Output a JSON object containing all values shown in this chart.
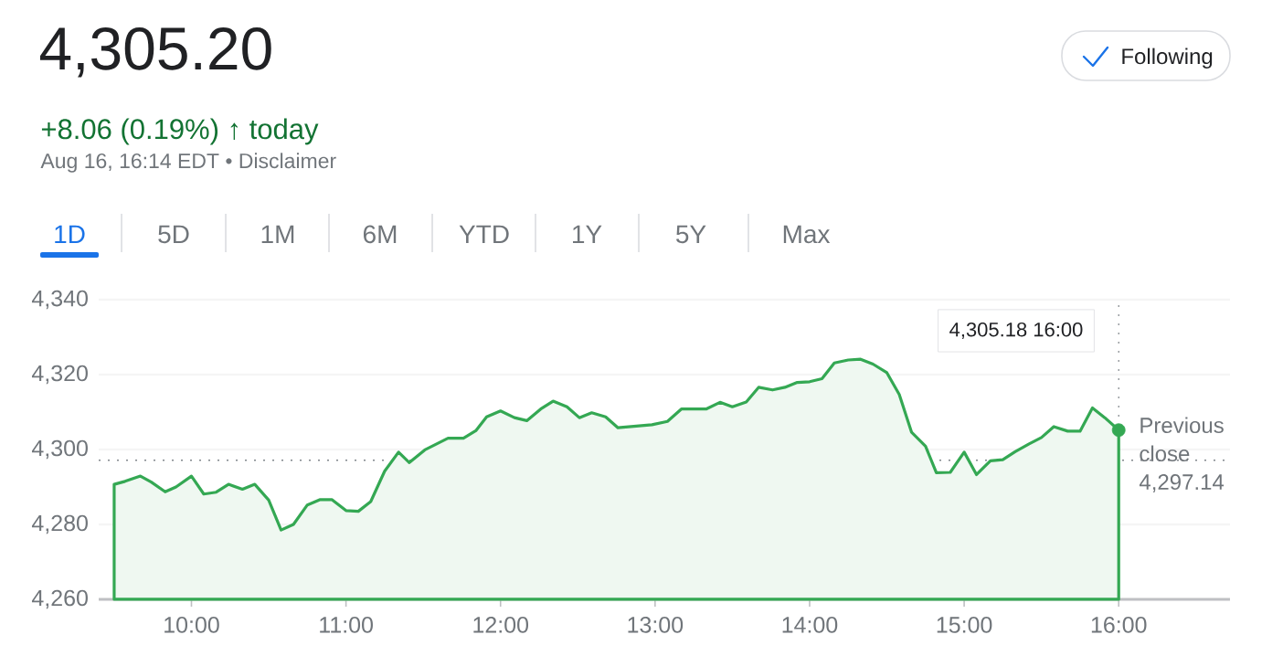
{
  "chart_data": {
    "type": "area",
    "title": "4,305.20",
    "subtitle": "+8.06 (0.19%) ↑ today",
    "annotations": [
      "Aug 16, 16:14 EDT • Disclaimer",
      "Following",
      "1D",
      "5D",
      "1M",
      "6M",
      "YTD",
      "1Y",
      "5Y",
      "Max",
      "4,305.18 16:00"
    ],
    "series": [
      {
        "color": "#34a853",
        "marker": "none",
        "x": [
          9.5,
          9.57,
          9.67,
          9.74,
          9.83,
          9.9,
          10.0,
          10.08,
          10.16,
          10.24,
          10.33,
          10.41,
          10.5,
          10.58,
          10.66,
          10.75,
          10.83,
          10.91,
          11.0,
          11.08,
          11.16,
          11.25,
          11.34,
          11.41,
          11.51,
          11.66,
          11.76,
          11.84,
          11.91,
          12.0,
          12.09,
          12.17,
          12.26,
          12.34,
          12.43,
          12.51,
          12.59,
          12.68,
          12.76,
          12.98,
          13.08,
          13.17,
          13.33,
          13.42,
          13.5,
          13.59,
          13.67,
          13.76,
          13.84,
          13.92,
          14.0,
          14.08,
          14.16,
          14.25,
          14.33,
          14.41,
          14.5,
          14.58,
          14.66,
          14.75,
          14.82,
          14.91,
          15.0,
          15.08,
          15.17,
          15.25,
          15.33,
          15.42,
          15.5,
          15.58,
          15.67,
          15.75,
          15.83,
          15.91,
          16.0
        ],
        "values": [
          4290.7,
          4291.5,
          4292.9,
          4291.3,
          4288.7,
          4290.0,
          4292.9,
          4288.1,
          4288.6,
          4290.7,
          4289.4,
          4290.7,
          4286.5,
          4278.5,
          4280.0,
          4285.2,
          4286.6,
          4286.6,
          4283.7,
          4283.5,
          4286.1,
          4294.2,
          4299.3,
          4296.5,
          4299.9,
          4303.0,
          4303.0,
          4305.0,
          4308.7,
          4310.3,
          4308.5,
          4307.7,
          4310.8,
          4312.9,
          4311.4,
          4308.5,
          4309.8,
          4308.7,
          4305.8,
          4306.6,
          4307.5,
          4310.8,
          4310.8,
          4312.6,
          4311.4,
          4312.7,
          4316.6,
          4315.9,
          4316.6,
          4317.9,
          4318.1,
          4318.9,
          4323.1,
          4323.9,
          4324.1,
          4322.8,
          4320.5,
          4314.7,
          4304.6,
          4300.9,
          4293.8,
          4293.9,
          4299.3,
          4293.3,
          4297.0,
          4297.3,
          4299.4,
          4301.5,
          4303.2,
          4306.1,
          4304.9,
          4304.9,
          4311.1,
          4308.5,
          4305.18
        ]
      },
      {
        "type": "scatter",
        "color": "#34a853",
        "marker": "circle",
        "x": [
          16
        ],
        "values": [
          4305.18
        ]
      }
    ],
    "xlim": [
      9.4,
      16.72
    ],
    "ylim": [
      4260,
      4340
    ],
    "xticks": [
      {
        "value": 10,
        "label": "10:00"
      },
      {
        "value": 11,
        "label": "11:00"
      },
      {
        "value": 12,
        "label": "12:00"
      },
      {
        "value": 13,
        "label": "13:00"
      },
      {
        "value": 14,
        "label": "14:00"
      },
      {
        "value": 15,
        "label": "15:00"
      },
      {
        "value": 16,
        "label": "16:00"
      }
    ],
    "yticks": [
      {
        "value": 4260,
        "label": "4,260"
      },
      {
        "value": 4280,
        "label": "4,280"
      },
      {
        "value": 4300,
        "label": "4,300"
      },
      {
        "value": 4320,
        "label": "4,320"
      },
      {
        "value": 4340,
        "label": "4,340"
      }
    ],
    "ref_lines": [
      {
        "axis": "y",
        "value": 4297.14,
        "label": "Previous close 4,297.14",
        "color": "#80868b",
        "line_style": "dotted"
      },
      {
        "axis": "x",
        "value": 16,
        "color": "#80868b",
        "line_style": "dotted"
      }
    ],
    "grid": "y"
  }
}
